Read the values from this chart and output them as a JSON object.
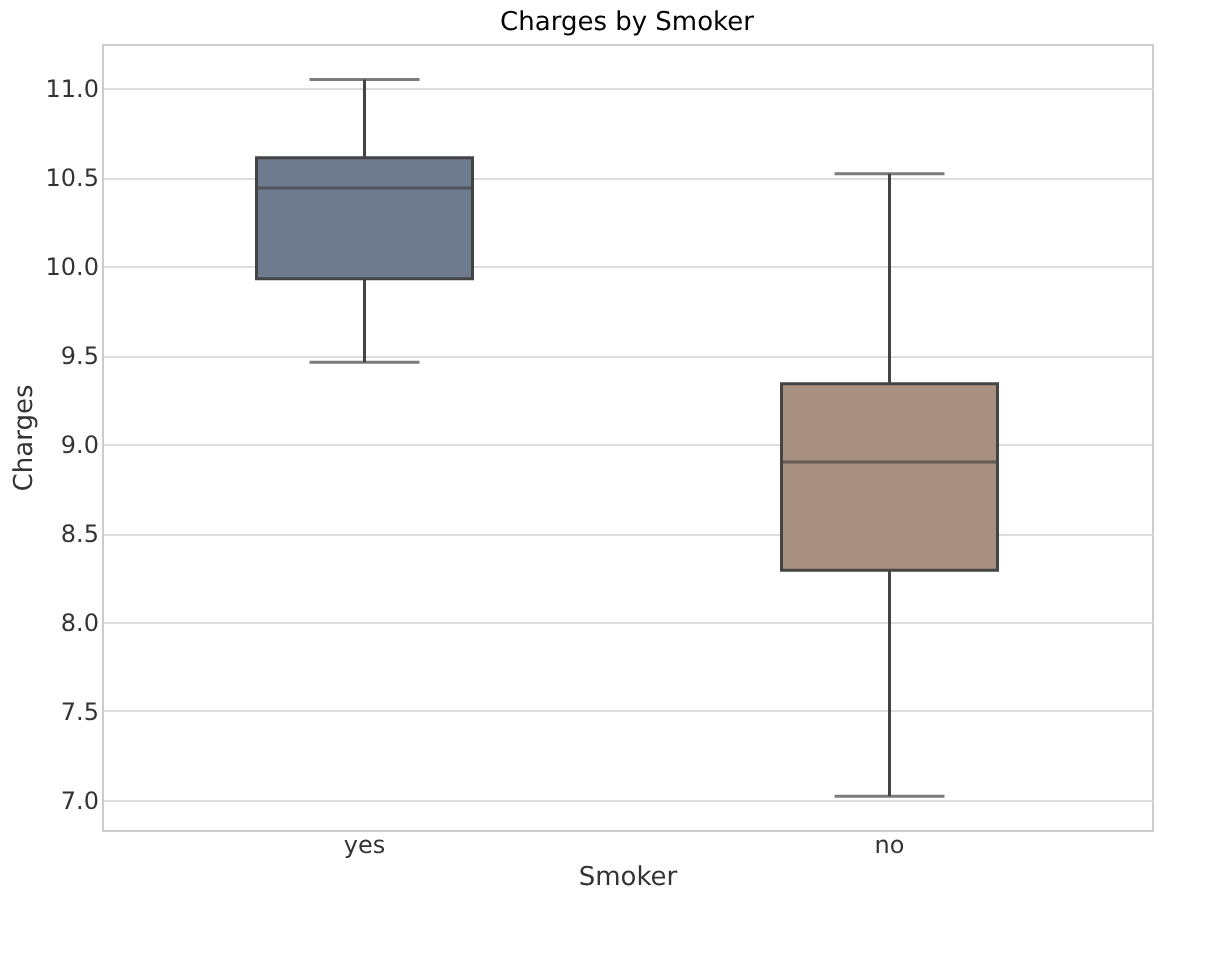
{
  "chart_data": {
    "type": "box",
    "title": "Charges by Smoker",
    "xlabel": "Smoker",
    "ylabel": "Charges",
    "categories": [
      "yes",
      "no"
    ],
    "boxes": [
      {
        "low": 9.46,
        "q1": 9.93,
        "median": 10.44,
        "q3": 10.61,
        "high": 11.05
      },
      {
        "low": 7.02,
        "q1": 8.29,
        "median": 8.9,
        "q3": 9.34,
        "high": 10.52
      }
    ],
    "colors": [
      "#6e7a8e",
      "#a89080"
    ],
    "ylim": [
      6.83,
      11.25
    ],
    "yticks": [
      {
        "value": 7,
        "label": "7.0"
      },
      7.5,
      {
        "value": 8,
        "label": "8.0"
      },
      8.5,
      {
        "value": 9,
        "label": "9.0"
      },
      9.5,
      {
        "value": 10,
        "label": "10.0"
      },
      10.5,
      {
        "value": 11,
        "label": "11.0"
      }
    ],
    "grid": "y"
  }
}
